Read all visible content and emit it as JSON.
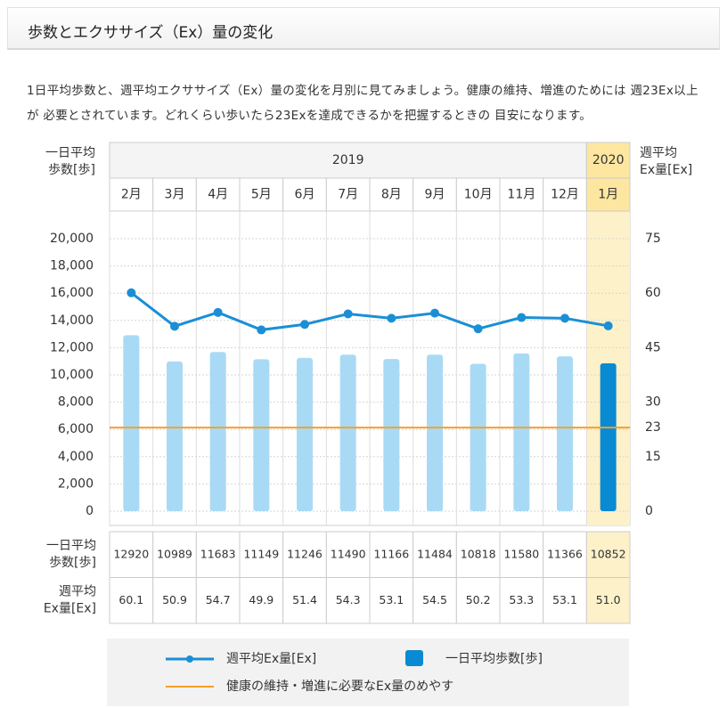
{
  "header": {
    "title": "歩数とエクササイズ（Ex）量の変化"
  },
  "description": "1日平均歩数と、週平均エクササイズ（Ex）量の変化を月別に見てみましょう。健康の維持、増進のためには 週23Ex以上が 必要とされています。どれくらい歩いたら23Exを達成できるかを把握するときの 目安になります。",
  "chart_data": {
    "type": "bar-line",
    "y_label_lines": [
      "一日平均",
      "歩数[歩]"
    ],
    "y2_label_lines": [
      "週平均",
      "Ex量[Ex]"
    ],
    "groups": [
      {
        "year": "2019",
        "categories": [
          "2月",
          "3月",
          "4月",
          "5月",
          "6月",
          "7月",
          "8月",
          "9月",
          "10月",
          "11月",
          "12月"
        ]
      },
      {
        "year": "2020",
        "categories": [
          "1月"
        ],
        "highlight": "#fdf1c9",
        "header_color": "#fde6a0"
      }
    ],
    "series": [
      {
        "name": "一日平均歩数[歩]",
        "type": "bar",
        "color": "#0a8ad2",
        "faded_color": "#a9daf5",
        "values": [
          12920,
          10989,
          11683,
          11149,
          11246,
          11490,
          11166,
          11484,
          10818,
          11580,
          11366,
          10852
        ]
      },
      {
        "name": "週平均Ex量[Ex]",
        "type": "line",
        "axis": "y2",
        "color": "#1a8fd6",
        "values": [
          60.1,
          50.9,
          54.7,
          49.9,
          51.4,
          54.3,
          53.1,
          54.5,
          50.2,
          53.3,
          53.1,
          51.0
        ],
        "value_labels": [
          "60.1",
          "50.9",
          "54.7",
          "49.9",
          "51.4",
          "54.3",
          "53.1",
          "54.5",
          "50.2",
          "53.3",
          "53.1",
          "51.0"
        ]
      }
    ],
    "reference": {
      "value": 23,
      "axis": "y2",
      "color": "#f5a02a",
      "name": "健康の維持・増進に必要なEx量のめやす"
    },
    "ylim": [
      0,
      20000
    ],
    "yticks": [
      0,
      {
        "value": 2000,
        "label": "2,000"
      },
      {
        "value": 4000,
        "label": "4,000"
      },
      {
        "value": 6000,
        "label": "6,000"
      },
      {
        "value": 8000,
        "label": "8,000"
      },
      {
        "value": 10000,
        "label": "10,000"
      },
      {
        "value": 12000,
        "label": "12,000"
      },
      {
        "value": 14000,
        "label": "14,000"
      },
      {
        "value": 16000,
        "label": "16,000"
      },
      {
        "value": 18000,
        "label": "18,000"
      },
      {
        "value": 20000,
        "label": "20,000"
      }
    ],
    "y2lim": [
      0,
      75
    ],
    "y2ticks": [
      0,
      15,
      30,
      45,
      60,
      75
    ],
    "grid": true,
    "table_row_labels": [
      [
        "一日平均",
        "歩数[歩]"
      ],
      [
        "週平均",
        "Ex量[Ex]"
      ]
    ]
  }
}
